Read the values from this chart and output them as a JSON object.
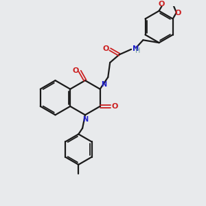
{
  "bg_color": "#e8eaec",
  "bond_color": "#1a1a1a",
  "N_color": "#2020cc",
  "O_color": "#cc2020",
  "H_color": "#669999",
  "figsize": [
    3.0,
    3.0
  ],
  "dpi": 100,
  "xlim": [
    0,
    300
  ],
  "ylim": [
    0,
    300
  ]
}
